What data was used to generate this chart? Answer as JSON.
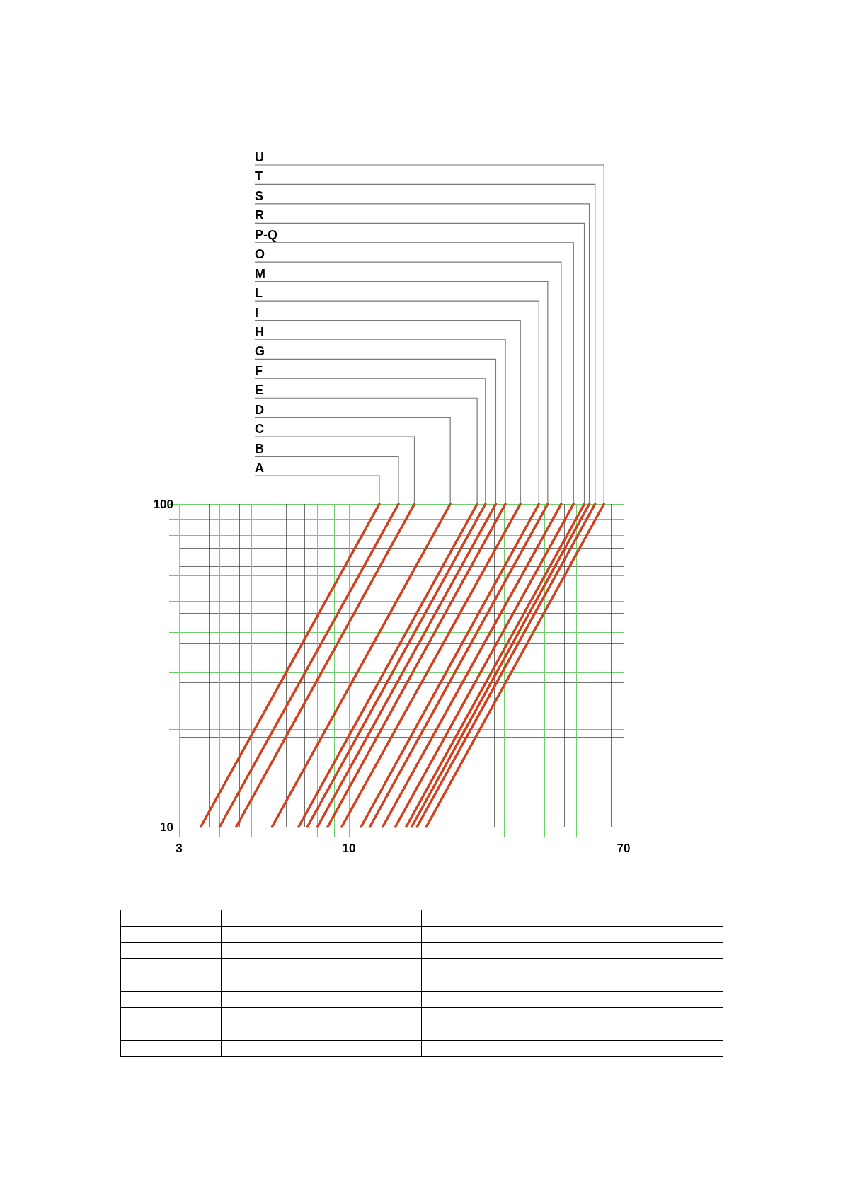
{
  "chart_data": {
    "type": "line",
    "log": "xy",
    "grid": true,
    "legend": false,
    "marker": "none",
    "line_style": "solid",
    "xlim": [
      3,
      70
    ],
    "ylim": [
      10,
      100
    ],
    "xticks": [
      3,
      {
        "value": 4,
        "label": null
      },
      {
        "value": 5,
        "label": null
      },
      {
        "value": 6,
        "label": null
      },
      {
        "value": 7,
        "label": null
      },
      {
        "value": 8,
        "label": null
      },
      {
        "value": 9,
        "label": null
      },
      10,
      {
        "value": 20,
        "label": null
      },
      {
        "value": 30,
        "label": null
      },
      {
        "value": 40,
        "label": null
      },
      {
        "value": 50,
        "label": null
      },
      {
        "value": 60,
        "label": null
      },
      70
    ],
    "yticks": [
      10,
      {
        "value": 20,
        "label": null
      },
      {
        "value": 30,
        "label": null
      },
      {
        "value": 40,
        "label": null
      },
      {
        "value": 50,
        "label": null
      },
      {
        "value": 60,
        "label": null
      },
      {
        "value": 70,
        "label": null
      },
      {
        "value": 80,
        "label": null
      },
      {
        "value": 90,
        "label": null
      },
      100
    ],
    "series": [
      {
        "name": "A",
        "color": "#d2401e",
        "x": [
          3.5,
          12.4
        ],
        "values": [
          10,
          100
        ]
      },
      {
        "name": "B",
        "color": "#d2401e",
        "x": [
          4.0,
          14.2
        ],
        "values": [
          10,
          100
        ]
      },
      {
        "name": "C",
        "color": "#d2401e",
        "x": [
          4.5,
          15.9
        ],
        "values": [
          10,
          100
        ]
      },
      {
        "name": "D",
        "color": "#d2401e",
        "x": [
          5.8,
          20.5
        ],
        "values": [
          10,
          100
        ]
      },
      {
        "name": "E",
        "color": "#d2401e",
        "x": [
          7.0,
          24.8
        ],
        "values": [
          10,
          100
        ]
      },
      {
        "name": "F",
        "color": "#d2401e",
        "x": [
          7.45,
          26.3
        ],
        "values": [
          10,
          100
        ]
      },
      {
        "name": "G",
        "color": "#d2401e",
        "x": [
          8.0,
          28.3
        ],
        "values": [
          10,
          100
        ]
      },
      {
        "name": "H",
        "color": "#d2401e",
        "x": [
          8.6,
          30.3
        ],
        "values": [
          10,
          100
        ]
      },
      {
        "name": "I",
        "color": "#d2401e",
        "x": [
          9.5,
          33.7
        ],
        "values": [
          10,
          100
        ]
      },
      {
        "name": "L",
        "color": "#d2401e",
        "x": [
          10.9,
          38.4
        ],
        "values": [
          10,
          100
        ]
      },
      {
        "name": "M",
        "color": "#d2401e",
        "x": [
          11.6,
          40.9
        ],
        "values": [
          10,
          100
        ]
      },
      {
        "name": "O",
        "color": "#d2401e",
        "x": [
          12.7,
          45.0
        ],
        "values": [
          10,
          100
        ]
      },
      {
        "name": "P-Q",
        "color": "#d2401e",
        "x": [
          13.9,
          49.1
        ],
        "values": [
          10,
          100
        ]
      },
      {
        "name": "R",
        "color": "#d2401e",
        "x": [
          15.0,
          53.0
        ],
        "values": [
          10,
          100
        ]
      },
      {
        "name": "S",
        "color": "#d2401e",
        "x": [
          15.6,
          54.9
        ],
        "values": [
          10,
          100
        ]
      },
      {
        "name": "T",
        "color": "#d2401e",
        "x": [
          16.2,
          57.2
        ],
        "values": [
          10,
          100
        ]
      },
      {
        "name": "U",
        "color": "#d2401e",
        "x": [
          17.3,
          60.9
        ],
        "values": [
          10,
          100
        ]
      }
    ]
  }
}
